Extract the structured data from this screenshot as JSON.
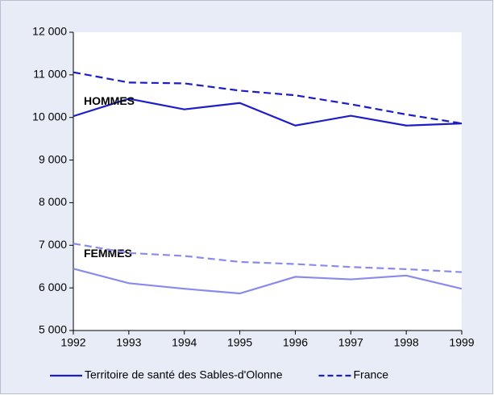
{
  "chart_data": {
    "type": "line",
    "x": [
      1992,
      1993,
      1994,
      1995,
      1996,
      1997,
      1998,
      1999
    ],
    "xlim": [
      1992,
      1999
    ],
    "xticks": [
      1992,
      1993,
      1994,
      1995,
      1996,
      1997,
      1998,
      1999
    ],
    "ylim": [
      5000,
      12000
    ],
    "yticks": [
      {
        "value": 5000,
        "label": "5 000"
      },
      {
        "value": 6000,
        "label": "6 000"
      },
      {
        "value": 7000,
        "label": "7 000"
      },
      {
        "value": 8000,
        "label": "8 000"
      },
      {
        "value": 9000,
        "label": "9 000"
      },
      {
        "value": 10000,
        "label": "10 000"
      },
      {
        "value": 11000,
        "label": "11 000"
      },
      {
        "value": 12000,
        "label": "12 000"
      }
    ],
    "grid": false,
    "legend": "bottom",
    "series": [
      {
        "name": "Territoire de santé des Sables-d'Olonne",
        "group": "HOMMES",
        "color": "#1c1cc8",
        "dash": false,
        "values": [
          10030,
          10440,
          10190,
          10340,
          9810,
          10040,
          9810,
          9860
        ]
      },
      {
        "name": "France",
        "group": "HOMMES",
        "color": "#1c1cc8",
        "dash": true,
        "values": [
          11060,
          10820,
          10800,
          10630,
          10520,
          10310,
          10070,
          9860
        ]
      },
      {
        "name": "Territoire de santé des Sables-d'Olonne",
        "group": "FEMMES",
        "color": "#8a8aee",
        "dash": false,
        "values": [
          6450,
          6110,
          5980,
          5870,
          6260,
          6200,
          6290,
          5980
        ]
      },
      {
        "name": "France",
        "group": "FEMMES",
        "color": "#8a8aee",
        "dash": true,
        "values": [
          7040,
          6820,
          6750,
          6610,
          6560,
          6490,
          6440,
          6370
        ]
      }
    ]
  }
}
